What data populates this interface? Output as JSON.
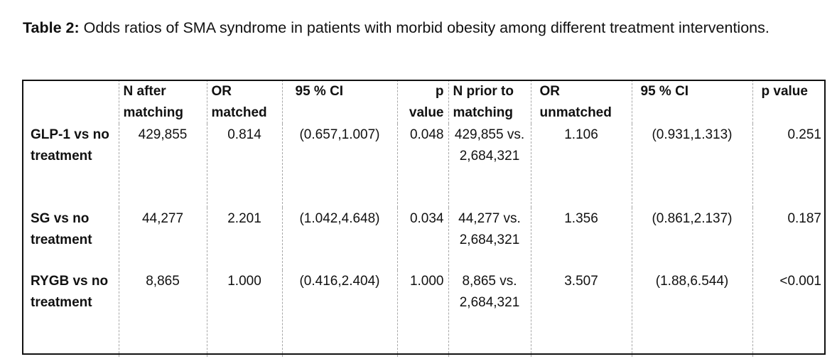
{
  "caption": {
    "label": "Table 2:",
    "text": "Odds ratios of SMA syndrome in patients with morbid obesity among different treatment interventions."
  },
  "table": {
    "headers": [
      "",
      "N after matching",
      "OR matched",
      "95 % CI",
      "p value",
      "N prior to matching",
      "OR unmatched",
      "95 % CI",
      "p value"
    ],
    "rows": [
      {
        "label": "GLP-1 vs no treatment",
        "n_after": "429,855",
        "or_matched": "0.814",
        "ci_matched": "(0.657,1.007)",
        "p_matched": "0.048",
        "n_prior": "429,855 vs. 2,684,321",
        "or_unmatched": "1.106",
        "ci_unmatched": "(0.931,1.313)",
        "p_unmatched": "0.251"
      },
      {
        "label": "SG vs no treatment",
        "n_after": "44,277",
        "or_matched": "2.201",
        "ci_matched": "(1.042,4.648)",
        "p_matched": "0.034",
        "n_prior": "44,277 vs. 2,684,321",
        "or_unmatched": "1.356",
        "ci_unmatched": "(0.861,2.137)",
        "p_unmatched": "0.187"
      },
      {
        "label": "RYGB vs no treatment",
        "n_after": "8,865",
        "or_matched": "1.000",
        "ci_matched": "(0.416,2.404)",
        "p_matched": "1.000",
        "n_prior": "8,865 vs. 2,684,321",
        "or_unmatched": "3.507",
        "ci_unmatched": "(1.88,6.544)",
        "p_unmatched": "<0.001"
      }
    ]
  }
}
